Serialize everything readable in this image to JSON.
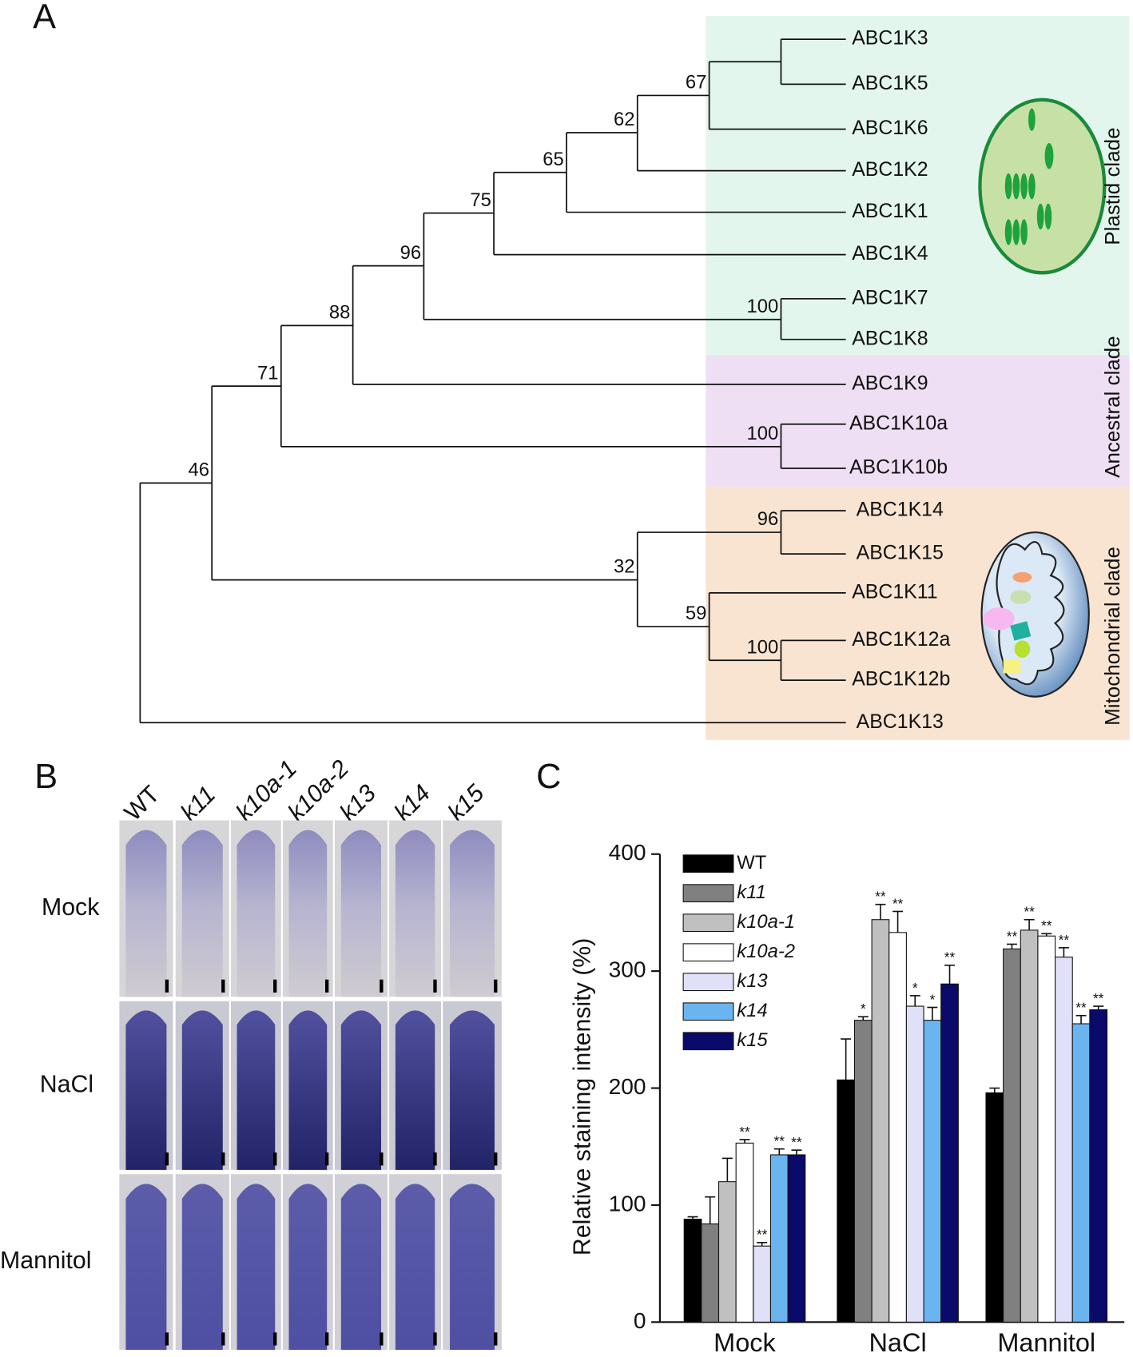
{
  "panels": {
    "a": "A",
    "b": "B",
    "c": "C"
  },
  "tree": {
    "leaves": [
      "ABC1K3",
      "ABC1K5",
      "ABC1K6",
      "ABC1K2",
      "ABC1K1",
      "ABC1K4",
      "ABC1K7",
      "ABC1K8",
      "ABC1K9",
      "ABC1K10a",
      "ABC1K10b",
      "ABC1K14",
      "ABC1K15",
      "ABC1K11",
      "ABC1K12a",
      "ABC1K12b",
      "ABC1K13"
    ],
    "support": [
      67,
      62,
      65,
      75,
      100,
      96,
      88,
      100,
      71,
      96,
      100,
      59,
      32,
      46
    ],
    "clades": [
      "Plastid clade",
      "Ancestral clade",
      "Mitochondrial clade"
    ]
  },
  "staining": {
    "genotypes": [
      "WT",
      "k11",
      "k10a-1",
      "k10a-2",
      "k13",
      "k14",
      "k15"
    ],
    "treatments": [
      "Mock",
      "NaCl",
      "Mannitol"
    ]
  },
  "chart_data": {
    "type": "bar",
    "y_label": "Relative staining intensity (%)",
    "categories": [
      "Mock",
      "NaCl",
      "Mannitol"
    ],
    "ylim": [
      0,
      400
    ],
    "yticks": [
      0,
      100,
      200,
      300,
      400
    ],
    "series": [
      {
        "name": "WT",
        "color": "#000000",
        "values": [
          88,
          207,
          196
        ],
        "errors": [
          2,
          35,
          4
        ],
        "annotations": [
          null,
          null,
          null
        ]
      },
      {
        "name": "k11",
        "color": "#808080",
        "values": [
          84,
          258,
          319
        ],
        "errors": [
          23,
          3,
          4
        ],
        "annotations": [
          null,
          "*",
          "**"
        ]
      },
      {
        "name": "k10a-1",
        "color": "#c0c0c0",
        "values": [
          120,
          344,
          335
        ],
        "errors": [
          20,
          13,
          9
        ],
        "annotations": [
          null,
          "**",
          "**"
        ]
      },
      {
        "name": "k10a-2",
        "color": "#ffffff",
        "values": [
          153,
          333,
          330
        ],
        "errors": [
          3,
          18,
          2
        ],
        "annotations": [
          "**",
          "**",
          "**"
        ]
      },
      {
        "name": "k13",
        "color": "#e0e0f8",
        "values": [
          65,
          270,
          312
        ],
        "errors": [
          3,
          9,
          8
        ],
        "annotations": [
          "**",
          "*",
          "**"
        ]
      },
      {
        "name": "k14",
        "color": "#6ab4f0",
        "values": [
          143,
          258,
          255
        ],
        "errors": [
          5,
          11,
          7
        ],
        "annotations": [
          "**",
          "*",
          "**"
        ]
      },
      {
        "name": "k15",
        "color": "#0a0a6a",
        "values": [
          143,
          289,
          267
        ],
        "errors": [
          4,
          16,
          3
        ],
        "annotations": [
          "**",
          "**",
          "**"
        ]
      }
    ]
  }
}
